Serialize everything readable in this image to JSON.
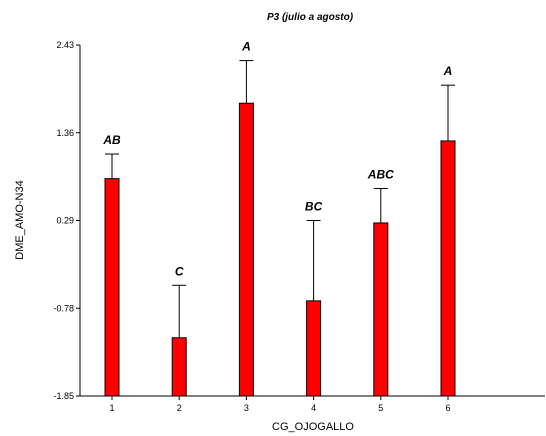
{
  "chart_data": {
    "type": "bar",
    "title": "P3 (julio a agosto)",
    "xlabel": "CG_OJOGALLO",
    "ylabel": "DME_AMO-N34",
    "categories": [
      "1",
      "2",
      "3",
      "4",
      "5",
      "6"
    ],
    "values": [
      0.8,
      -1.14,
      1.72,
      -0.69,
      0.26,
      1.26
    ],
    "error_upper": [
      1.1,
      -0.5,
      2.24,
      0.29,
      0.68,
      1.94
    ],
    "group_labels": [
      "AB",
      "C",
      "A",
      "BC",
      "ABC",
      "A"
    ],
    "y_ticks": [
      "2.43",
      "1.36",
      "0.29",
      "-0.78",
      "-1.85"
    ],
    "ylim": [
      -1.85,
      2.43
    ],
    "bar_color": "#ff0000",
    "bar_stroke": "#000000",
    "grid": false
  }
}
